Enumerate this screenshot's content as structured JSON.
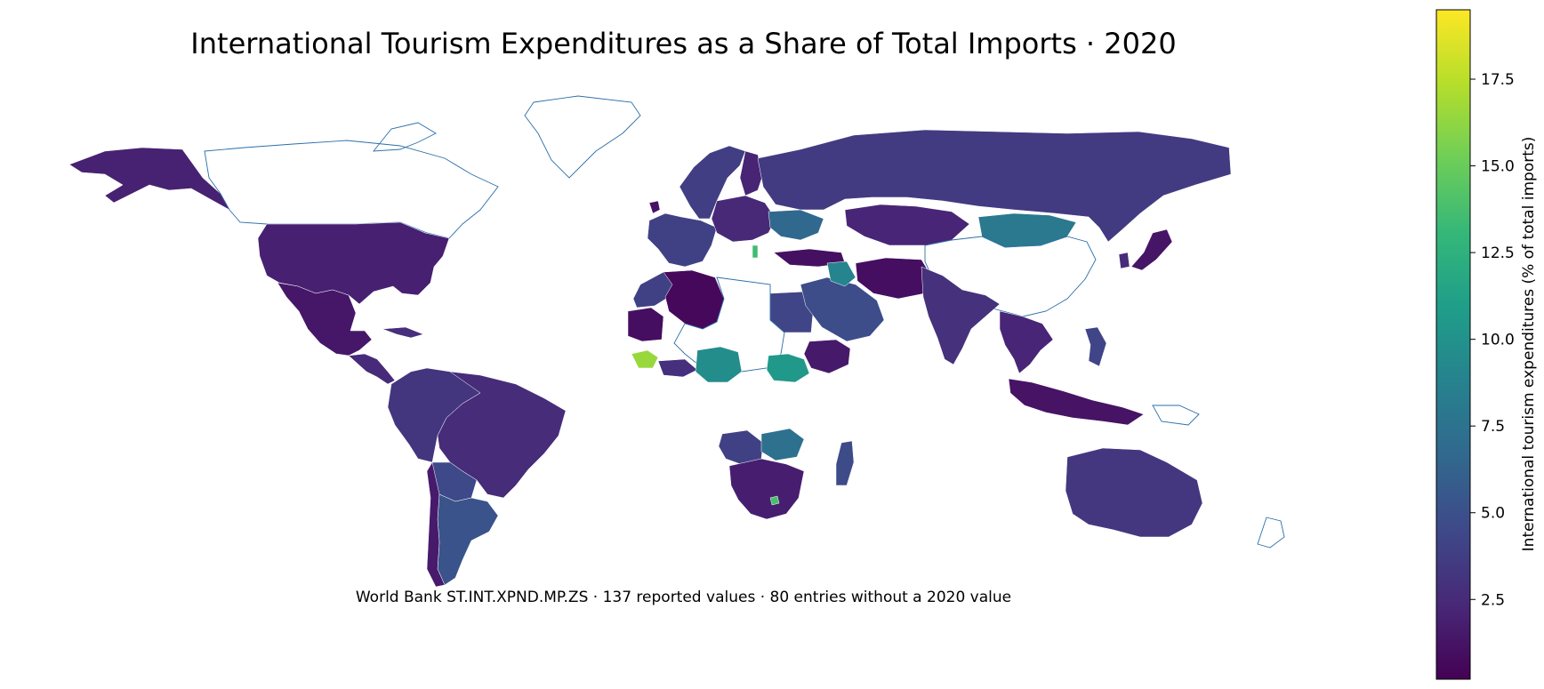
{
  "title": "International Tourism Expenditures as a Share of Total Imports · 2020",
  "subtitle": "World Bank ST.INT.XPND.MP.ZS · 137 reported values · 80 entries without a 2020 value",
  "colorbar": {
    "label": "International tourism expenditures (% of total imports)",
    "colormap": "viridis",
    "min": 0.2,
    "max": 19.5,
    "ticks": [
      "2.5",
      "5.0",
      "7.5",
      "10.0",
      "12.5",
      "15.0",
      "17.5"
    ],
    "tick_values": [
      2.5,
      5.0,
      7.5,
      10.0,
      12.5,
      15.0,
      17.5
    ]
  },
  "colors": {
    "no_data_outline": "#2b6fa8",
    "border": "#ffffff",
    "viridis": [
      "#440154",
      "#482878",
      "#3e4989",
      "#31688e",
      "#26828e",
      "#1f9e89",
      "#35b779",
      "#6ece58",
      "#b5de2b",
      "#fde725"
    ]
  },
  "regions": [
    {
      "name": "Alaska",
      "value": 2.0
    },
    {
      "name": "Canada",
      "value": null
    },
    {
      "name": "United States",
      "value": 1.9
    },
    {
      "name": "Mexico",
      "value": 1.4
    },
    {
      "name": "Central America",
      "value": 2.5
    },
    {
      "name": "Cuba",
      "value": 2.8
    },
    {
      "name": "Greenland",
      "value": null
    },
    {
      "name": "Colombia / Venezuela / Peru",
      "value": 3.2
    },
    {
      "name": "Brazil",
      "value": 2.6
    },
    {
      "name": "Bolivia / Paraguay",
      "value": 4.5
    },
    {
      "name": "Argentina",
      "value": 5.2
    },
    {
      "name": "Chile",
      "value": 1.6
    },
    {
      "name": "Norway / Sweden",
      "value": 3.8
    },
    {
      "name": "Finland",
      "value": 2.1
    },
    {
      "name": "Western Europe",
      "value": 4.0
    },
    {
      "name": "Ireland",
      "value": 1.2
    },
    {
      "name": "Eastern Europe",
      "value": 2.4
    },
    {
      "name": "Ukraine / Caucasus",
      "value": 6.6
    },
    {
      "name": "Albania",
      "value": 13.5
    },
    {
      "name": "Turkey",
      "value": 1.0
    },
    {
      "name": "Russia",
      "value": 3.6
    },
    {
      "name": "Kazakhstan",
      "value": 2.2
    },
    {
      "name": "Mongolia",
      "value": 8.0
    },
    {
      "name": "China",
      "value": null
    },
    {
      "name": "Japan",
      "value": 1.3
    },
    {
      "name": "Korea",
      "value": 2.6
    },
    {
      "name": "Morocco",
      "value": 4.0
    },
    {
      "name": "Algeria",
      "value": 0.6
    },
    {
      "name": "Mauritania",
      "value": 0.9
    },
    {
      "name": "Egypt",
      "value": 4.2
    },
    {
      "name": "Libya / Sahel",
      "value": null
    },
    {
      "name": "Guinea",
      "value": 16.5
    },
    {
      "name": "Liberia / Cote d'Ivoire",
      "value": 2.8
    },
    {
      "name": "Nigeria",
      "value": 9.6
    },
    {
      "name": "Chad",
      "value": 10.5
    },
    {
      "name": "Ethiopia",
      "value": 1.5
    },
    {
      "name": "Saudi Arabia",
      "value": 4.8
    },
    {
      "name": "Iraq",
      "value": 8.9
    },
    {
      "name": "Iran / Afghanistan",
      "value": 0.9
    },
    {
      "name": "India",
      "value": 2.9
    },
    {
      "name": "Mainland Southeast Asia",
      "value": 2.2
    },
    {
      "name": "Philippines",
      "value": 4.2
    },
    {
      "name": "Indonesia",
      "value": 1.2
    },
    {
      "name": "Papua New Guinea",
      "value": null
    },
    {
      "name": "Angola / DRC south",
      "value": 4.0
    },
    {
      "name": "Zambia",
      "value": 7.4
    },
    {
      "name": "Southern Africa",
      "value": 1.8
    },
    {
      "name": "Lesotho",
      "value": 13.8
    },
    {
      "name": "Madagascar",
      "value": 4.6
    },
    {
      "name": "Australia",
      "value": 3.3
    },
    {
      "name": "New Zealand",
      "value": null
    }
  ]
}
